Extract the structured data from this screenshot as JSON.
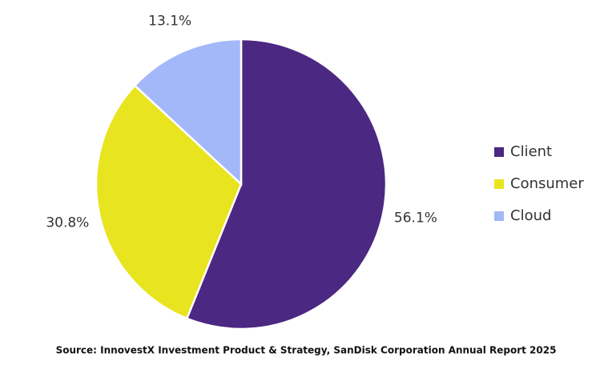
{
  "chart_data": {
    "type": "pie",
    "categories": [
      "Client",
      "Consumer",
      "Cloud"
    ],
    "values": [
      56.1,
      30.8,
      13.1
    ],
    "value_labels": [
      "56.1%",
      "30.8%",
      "13.1%"
    ],
    "colors": [
      "#4b2882",
      "#e8e41f",
      "#a3b8f8"
    ],
    "legend": "right",
    "source": "Source: InnovestX Investment Product & Strategy, SanDisk Corporation Annual Report 2025"
  }
}
